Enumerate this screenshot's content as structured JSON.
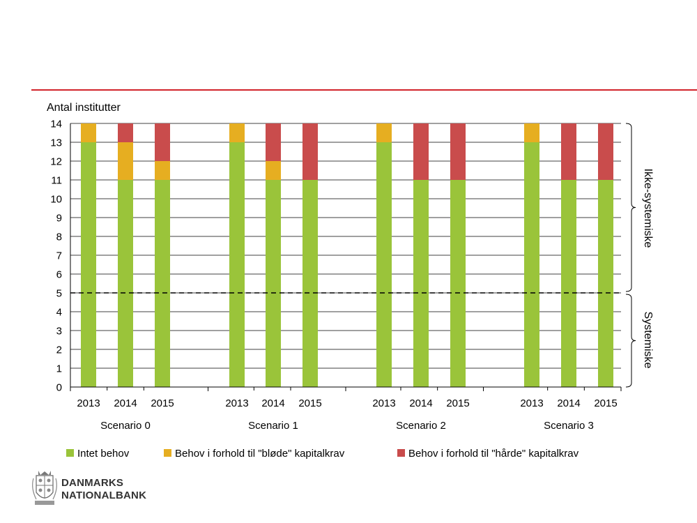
{
  "chart_data": {
    "type": "bar",
    "stacked": true,
    "ylabel": "Antal institutter",
    "ylim": [
      0,
      14
    ],
    "yticks": [
      0,
      1,
      2,
      3,
      4,
      5,
      6,
      7,
      8,
      9,
      10,
      11,
      12,
      13,
      14
    ],
    "threshold": 5,
    "categories": [
      "2013",
      "2014",
      "2015",
      "2013",
      "2014",
      "2015",
      "2013",
      "2014",
      "2015",
      "2013",
      "2014",
      "2015"
    ],
    "groups": [
      "Scenario 0",
      "Scenario 1",
      "Scenario 2",
      "Scenario 3"
    ],
    "series": [
      {
        "name": "Intet behov",
        "color": "#9ac43a",
        "values": [
          13,
          11,
          11,
          13,
          11,
          11,
          13,
          11,
          11,
          13,
          11,
          11
        ]
      },
      {
        "name": "Behov i forhold til \"bløde\" kapitalkrav",
        "color": "#e6ae21",
        "values": [
          1,
          2,
          1,
          1,
          1,
          0,
          1,
          0,
          0,
          1,
          0,
          0
        ]
      },
      {
        "name": "Behov i forhold til \"hårde\" kapitalkrav",
        "color": "#c94c4c",
        "values": [
          0,
          1,
          2,
          0,
          2,
          3,
          0,
          3,
          3,
          0,
          3,
          3
        ]
      }
    ],
    "brackets": [
      "Ikke-systemiske",
      "Systemiske"
    ]
  },
  "logo": {
    "line1": "DANMARKS",
    "line2": "NATIONALBANK"
  },
  "colors": {
    "rule": "#d2232a"
  }
}
